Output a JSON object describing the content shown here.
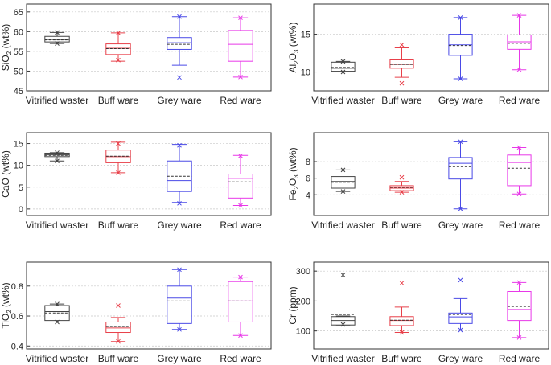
{
  "chart_data": [
    {
      "type": "box",
      "ylabel": "SiO2 (wt%)",
      "ylabel_parts": {
        "base": "SiO",
        "sub": "2",
        "unit": " (wt%)"
      },
      "ylim": [
        45,
        67
      ],
      "yticks": [
        45,
        50,
        55,
        60,
        65
      ],
      "categories": [
        "Vitrified waster",
        "Buff ware",
        "Grey ware",
        "Red ware"
      ],
      "boxes": [
        {
          "whisker_low": 57.0,
          "q1": 57.4,
          "median": 58.0,
          "mean": 57.9,
          "q3": 58.8,
          "whisker_high": 59.8,
          "outliers": [
            59.8,
            57.0
          ]
        },
        {
          "whisker_low": 52.5,
          "q1": 54.2,
          "median": 55.8,
          "mean": 55.7,
          "q3": 56.9,
          "whisker_high": 59.7,
          "outliers": [
            52.8,
            59.7
          ]
        },
        {
          "whisker_low": 51.5,
          "q1": 55.5,
          "median": 57.2,
          "mean": 56.8,
          "q3": 58.5,
          "whisker_high": 63.8,
          "outliers": [
            48.4,
            63.8
          ]
        },
        {
          "whisker_low": 48.5,
          "q1": 52.5,
          "median": 56.8,
          "mean": 56.1,
          "q3": 60.3,
          "whisker_high": 63.5,
          "outliers": [
            48.5,
            63.5
          ]
        }
      ]
    },
    {
      "type": "box",
      "ylabel": "Al2O3 (wt%)",
      "ylabel_parts": {
        "base": "Al",
        "sub": "2",
        "mid": "O",
        "sub2": "3",
        "unit": " (wt%)"
      },
      "ylim": [
        7.5,
        19
      ],
      "yticks": [
        10,
        15
      ],
      "categories": [
        "Vitrified waster",
        "Buff ware",
        "Grey ware",
        "Red ware"
      ],
      "boxes": [
        {
          "whisker_low": 10.0,
          "q1": 10.1,
          "median": 10.5,
          "mean": 10.6,
          "q3": 11.3,
          "whisker_high": 11.4,
          "outliers": [
            11.4,
            10.0
          ]
        },
        {
          "whisker_low": 9.3,
          "q1": 10.5,
          "median": 11.0,
          "mean": 11.0,
          "q3": 11.6,
          "whisker_high": 13.2,
          "outliers": [
            8.5,
            13.6
          ]
        },
        {
          "whisker_low": 9.1,
          "q1": 12.2,
          "median": 13.6,
          "mean": 13.5,
          "q3": 15.0,
          "whisker_high": 17.2,
          "outliers": [
            9.1,
            17.2
          ]
        },
        {
          "whisker_low": 10.3,
          "q1": 13.0,
          "median": 14.0,
          "mean": 13.8,
          "q3": 14.9,
          "whisker_high": 17.5,
          "outliers": [
            10.3,
            17.5
          ]
        }
      ]
    },
    {
      "type": "box",
      "ylabel": "CaO (wt%)",
      "ylabel_parts": {
        "base": "CaO",
        "unit": " (wt%)"
      },
      "ylim": [
        -1.5,
        17.5
      ],
      "yticks": [
        0,
        5,
        10,
        15
      ],
      "categories": [
        "Vitrified waster",
        "Buff ware",
        "Grey ware",
        "Red ware"
      ],
      "boxes": [
        {
          "whisker_low": 11.0,
          "q1": 12.0,
          "median": 12.4,
          "mean": 12.3,
          "q3": 12.8,
          "whisker_high": 12.9,
          "outliers": [
            12.9,
            11.0
          ]
        },
        {
          "whisker_low": 8.3,
          "q1": 10.6,
          "median": 12.0,
          "mean": 12.1,
          "q3": 13.5,
          "whisker_high": 15.3,
          "outliers": [
            8.3,
            15.0
          ]
        },
        {
          "whisker_low": 1.5,
          "q1": 4.0,
          "median": 6.5,
          "mean": 7.5,
          "q3": 11.0,
          "whisker_high": 14.8,
          "outliers": [
            1.3,
            14.6
          ]
        },
        {
          "whisker_low": 0.8,
          "q1": 2.5,
          "median": 7.0,
          "mean": 6.2,
          "q3": 8.0,
          "whisker_high": 12.3,
          "outliers": [
            0.8,
            12.2
          ]
        }
      ]
    },
    {
      "type": "box",
      "ylabel": "Fe2O3 (wt%)",
      "ylabel_parts": {
        "base": "Fe",
        "sub": "2",
        "mid": "O",
        "sub2": "3",
        "unit": " (wt%)"
      },
      "ylim": [
        1.5,
        11.5
      ],
      "yticks": [
        4,
        6,
        8
      ],
      "categories": [
        "Vitrified waster",
        "Buff ware",
        "Grey ware",
        "Red ware"
      ],
      "boxes": [
        {
          "whisker_low": 4.4,
          "q1": 4.8,
          "median": 5.6,
          "mean": 5.5,
          "q3": 6.2,
          "whisker_high": 7.0,
          "outliers": [
            7.0,
            4.4
          ]
        },
        {
          "whisker_low": 4.3,
          "q1": 4.5,
          "median": 4.8,
          "mean": 4.9,
          "q3": 5.1,
          "whisker_high": 5.6,
          "outliers": [
            6.1,
            4.3
          ]
        },
        {
          "whisker_low": 2.3,
          "q1": 5.9,
          "median": 7.8,
          "mean": 7.4,
          "q3": 8.5,
          "whisker_high": 10.4,
          "outliers": [
            10.4,
            2.3
          ]
        },
        {
          "whisker_low": 4.1,
          "q1": 5.1,
          "median": 7.9,
          "mean": 7.2,
          "q3": 8.8,
          "whisker_high": 9.7,
          "outliers": [
            9.7,
            4.1
          ]
        }
      ]
    },
    {
      "type": "box",
      "ylabel": "TiO2 (wt%)",
      "ylabel_parts": {
        "base": "TiO",
        "sub": "2",
        "unit": " (wt%)"
      },
      "ylim": [
        0.38,
        0.96
      ],
      "yticks": [
        0.4,
        0.6,
        0.8
      ],
      "categories": [
        "Vitrified waster",
        "Buff ware",
        "Grey ware",
        "Red ware"
      ],
      "boxes": [
        {
          "whisker_low": 0.56,
          "q1": 0.57,
          "median": 0.63,
          "mean": 0.62,
          "q3": 0.67,
          "whisker_high": 0.68,
          "outliers": [
            0.68,
            0.56
          ]
        },
        {
          "whisker_low": 0.43,
          "q1": 0.49,
          "median": 0.52,
          "mean": 0.53,
          "q3": 0.56,
          "whisker_high": 0.59,
          "outliers": [
            0.67,
            0.43
          ]
        },
        {
          "whisker_low": 0.51,
          "q1": 0.55,
          "median": 0.72,
          "mean": 0.7,
          "q3": 0.8,
          "whisker_high": 0.91,
          "outliers": [
            0.91,
            0.51
          ]
        },
        {
          "whisker_low": 0.47,
          "q1": 0.56,
          "median": 0.7,
          "mean": 0.7,
          "q3": 0.83,
          "whisker_high": 0.86,
          "outliers": [
            0.86,
            0.47
          ]
        }
      ]
    },
    {
      "type": "box",
      "ylabel": "Cr (ppm)",
      "ylabel_parts": {
        "base": "Cr",
        "unit": " (ppm)"
      },
      "ylim": [
        40,
        330
      ],
      "yticks": [
        100,
        200,
        300
      ],
      "categories": [
        "Vitrified waster",
        "Buff ware",
        "Grey ware",
        "Red ware"
      ],
      "boxes": [
        {
          "whisker_low": 120,
          "q1": 120,
          "median": 135,
          "mean": 155,
          "q3": 148,
          "whisker_high": 150,
          "outliers": [
            287,
            122
          ]
        },
        {
          "whisker_low": 95,
          "q1": 118,
          "median": 135,
          "mean": 136,
          "q3": 148,
          "whisker_high": 180,
          "outliers": [
            260,
            95
          ]
        },
        {
          "whisker_low": 103,
          "q1": 125,
          "median": 147,
          "mean": 155,
          "q3": 160,
          "whisker_high": 208,
          "outliers": [
            270,
            103
          ]
        },
        {
          "whisker_low": 78,
          "q1": 135,
          "median": 172,
          "mean": 182,
          "q3": 232,
          "whisker_high": 262,
          "outliers": [
            262,
            78
          ]
        }
      ]
    }
  ],
  "colors": [
    "#444444",
    "#e8404a",
    "#4a4ae6",
    "#e838e8"
  ]
}
